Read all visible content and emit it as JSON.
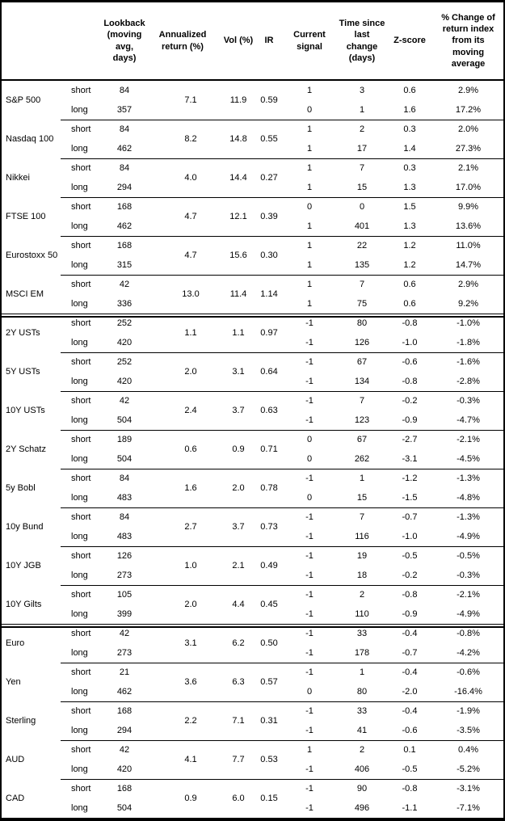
{
  "colors": {
    "border": "#000000",
    "background": "#ffffff",
    "text": "#000000"
  },
  "table": {
    "headers": {
      "lookback": "Lookback\n(moving\navg, days)",
      "annualized": "Annualized\nreturn (%)",
      "vol": "Vol (%)",
      "ir": "IR",
      "signal": "Current\nsignal",
      "time_since": "Time since\nlast change\n(days)",
      "zscore": "Z-score",
      "pct_change": "% Change of\nreturn index\nfrom its\nmoving\naverage"
    },
    "groups": [
      {
        "asset": "S&P 500",
        "section": "equities",
        "annualized": "7.1",
        "vol": "11.9",
        "ir": "0.59",
        "rows": [
          {
            "period": "short",
            "lookback": "84",
            "signal": "1",
            "time": "3",
            "zscore": "0.6",
            "pct": "2.9%"
          },
          {
            "period": "long",
            "lookback": "357",
            "signal": "0",
            "time": "1",
            "zscore": "1.6",
            "pct": "17.2%"
          }
        ]
      },
      {
        "asset": "Nasdaq 100",
        "section": "equities",
        "annualized": "8.2",
        "vol": "14.8",
        "ir": "0.55",
        "rows": [
          {
            "period": "short",
            "lookback": "84",
            "signal": "1",
            "time": "2",
            "zscore": "0.3",
            "pct": "2.0%"
          },
          {
            "period": "long",
            "lookback": "462",
            "signal": "1",
            "time": "17",
            "zscore": "1.4",
            "pct": "27.3%"
          }
        ]
      },
      {
        "asset": "Nikkei",
        "section": "equities",
        "annualized": "4.0",
        "vol": "14.4",
        "ir": "0.27",
        "rows": [
          {
            "period": "short",
            "lookback": "84",
            "signal": "1",
            "time": "7",
            "zscore": "0.3",
            "pct": "2.1%"
          },
          {
            "period": "long",
            "lookback": "294",
            "signal": "1",
            "time": "15",
            "zscore": "1.3",
            "pct": "17.0%"
          }
        ]
      },
      {
        "asset": "FTSE 100",
        "section": "equities",
        "annualized": "4.7",
        "vol": "12.1",
        "ir": "0.39",
        "rows": [
          {
            "period": "short",
            "lookback": "168",
            "signal": "0",
            "time": "0",
            "zscore": "1.5",
            "pct": "9.9%"
          },
          {
            "period": "long",
            "lookback": "462",
            "signal": "1",
            "time": "401",
            "zscore": "1.3",
            "pct": "13.6%"
          }
        ]
      },
      {
        "asset": "Eurostoxx 50",
        "section": "equities",
        "annualized": "4.7",
        "vol": "15.6",
        "ir": "0.30",
        "rows": [
          {
            "period": "short",
            "lookback": "168",
            "signal": "1",
            "time": "22",
            "zscore": "1.2",
            "pct": "11.0%"
          },
          {
            "period": "long",
            "lookback": "315",
            "signal": "1",
            "time": "135",
            "zscore": "1.2",
            "pct": "14.7%"
          }
        ]
      },
      {
        "asset": "MSCI EM",
        "section": "equities",
        "annualized": "13.0",
        "vol": "11.4",
        "ir": "1.14",
        "rows": [
          {
            "period": "short",
            "lookback": "42",
            "signal": "1",
            "time": "7",
            "zscore": "0.6",
            "pct": "2.9%"
          },
          {
            "period": "long",
            "lookback": "336",
            "signal": "1",
            "time": "75",
            "zscore": "0.6",
            "pct": "9.2%"
          }
        ]
      },
      {
        "asset": "2Y USTs",
        "section": "bonds",
        "annualized": "1.1",
        "vol": "1.1",
        "ir": "0.97",
        "rows": [
          {
            "period": "short",
            "lookback": "252",
            "signal": "-1",
            "time": "80",
            "zscore": "-0.8",
            "pct": "-1.0%"
          },
          {
            "period": "long",
            "lookback": "420",
            "signal": "-1",
            "time": "126",
            "zscore": "-1.0",
            "pct": "-1.8%"
          }
        ]
      },
      {
        "asset": "5Y USTs",
        "section": "bonds",
        "annualized": "2.0",
        "vol": "3.1",
        "ir": "0.64",
        "rows": [
          {
            "period": "short",
            "lookback": "252",
            "signal": "-1",
            "time": "67",
            "zscore": "-0.6",
            "pct": "-1.6%"
          },
          {
            "period": "long",
            "lookback": "420",
            "signal": "-1",
            "time": "134",
            "zscore": "-0.8",
            "pct": "-2.8%"
          }
        ]
      },
      {
        "asset": "10Y USTs",
        "section": "bonds",
        "annualized": "2.4",
        "vol": "3.7",
        "ir": "0.63",
        "rows": [
          {
            "period": "short",
            "lookback": "42",
            "signal": "-1",
            "time": "7",
            "zscore": "-0.2",
            "pct": "-0.3%"
          },
          {
            "period": "long",
            "lookback": "504",
            "signal": "-1",
            "time": "123",
            "zscore": "-0.9",
            "pct": "-4.7%"
          }
        ]
      },
      {
        "asset": "2Y Schatz",
        "section": "bonds",
        "annualized": "0.6",
        "vol": "0.9",
        "ir": "0.71",
        "rows": [
          {
            "period": "short",
            "lookback": "189",
            "signal": "0",
            "time": "67",
            "zscore": "-2.7",
            "pct": "-2.1%"
          },
          {
            "period": "long",
            "lookback": "504",
            "signal": "0",
            "time": "262",
            "zscore": "-3.1",
            "pct": "-4.5%"
          }
        ]
      },
      {
        "asset": "5y Bobl",
        "section": "bonds",
        "annualized": "1.6",
        "vol": "2.0",
        "ir": "0.78",
        "rows": [
          {
            "period": "short",
            "lookback": "84",
            "signal": "-1",
            "time": "1",
            "zscore": "-1.2",
            "pct": "-1.3%"
          },
          {
            "period": "long",
            "lookback": "483",
            "signal": "0",
            "time": "15",
            "zscore": "-1.5",
            "pct": "-4.8%"
          }
        ]
      },
      {
        "asset": "10y Bund",
        "section": "bonds",
        "annualized": "2.7",
        "vol": "3.7",
        "ir": "0.73",
        "rows": [
          {
            "period": "short",
            "lookback": "84",
            "signal": "-1",
            "time": "7",
            "zscore": "-0.7",
            "pct": "-1.3%"
          },
          {
            "period": "long",
            "lookback": "483",
            "signal": "-1",
            "time": "116",
            "zscore": "-1.0",
            "pct": "-4.9%"
          }
        ]
      },
      {
        "asset": "10Y JGB",
        "section": "bonds",
        "annualized": "1.0",
        "vol": "2.1",
        "ir": "0.49",
        "rows": [
          {
            "period": "short",
            "lookback": "126",
            "signal": "-1",
            "time": "19",
            "zscore": "-0.5",
            "pct": "-0.5%"
          },
          {
            "period": "long",
            "lookback": "273",
            "signal": "-1",
            "time": "18",
            "zscore": "-0.2",
            "pct": "-0.3%"
          }
        ]
      },
      {
        "asset": "10Y Gilts",
        "section": "bonds",
        "annualized": "2.0",
        "vol": "4.4",
        "ir": "0.45",
        "rows": [
          {
            "period": "short",
            "lookback": "105",
            "signal": "-1",
            "time": "2",
            "zscore": "-0.8",
            "pct": "-2.1%"
          },
          {
            "period": "long",
            "lookback": "399",
            "signal": "-1",
            "time": "110",
            "zscore": "-0.9",
            "pct": "-4.9%"
          }
        ]
      },
      {
        "asset": "Euro",
        "section": "fx",
        "annualized": "3.1",
        "vol": "6.2",
        "ir": "0.50",
        "rows": [
          {
            "period": "short",
            "lookback": "42",
            "signal": "-1",
            "time": "33",
            "zscore": "-0.4",
            "pct": "-0.8%"
          },
          {
            "period": "long",
            "lookback": "273",
            "signal": "-1",
            "time": "178",
            "zscore": "-0.7",
            "pct": "-4.2%"
          }
        ]
      },
      {
        "asset": "Yen",
        "section": "fx",
        "annualized": "3.6",
        "vol": "6.3",
        "ir": "0.57",
        "rows": [
          {
            "period": "short",
            "lookback": "21",
            "signal": "-1",
            "time": "1",
            "zscore": "-0.4",
            "pct": "-0.6%"
          },
          {
            "period": "long",
            "lookback": "462",
            "signal": "0",
            "time": "80",
            "zscore": "-2.0",
            "pct": "-16.4%"
          }
        ]
      },
      {
        "asset": "Sterling",
        "section": "fx",
        "annualized": "2.2",
        "vol": "7.1",
        "ir": "0.31",
        "rows": [
          {
            "period": "short",
            "lookback": "168",
            "signal": "-1",
            "time": "33",
            "zscore": "-0.4",
            "pct": "-1.9%"
          },
          {
            "period": "long",
            "lookback": "294",
            "signal": "-1",
            "time": "41",
            "zscore": "-0.6",
            "pct": "-3.5%"
          }
        ]
      },
      {
        "asset": "AUD",
        "section": "fx",
        "annualized": "4.1",
        "vol": "7.7",
        "ir": "0.53",
        "rows": [
          {
            "period": "short",
            "lookback": "42",
            "signal": "1",
            "time": "2",
            "zscore": "0.1",
            "pct": "0.4%"
          },
          {
            "period": "long",
            "lookback": "420",
            "signal": "-1",
            "time": "406",
            "zscore": "-0.5",
            "pct": "-5.2%"
          }
        ]
      },
      {
        "asset": "CAD",
        "section": "fx",
        "annualized": "0.9",
        "vol": "6.0",
        "ir": "0.15",
        "rows": [
          {
            "period": "short",
            "lookback": "168",
            "signal": "-1",
            "time": "90",
            "zscore": "-0.8",
            "pct": "-3.1%"
          },
          {
            "period": "long",
            "lookback": "504",
            "signal": "-1",
            "time": "496",
            "zscore": "-1.1",
            "pct": "-7.1%"
          }
        ]
      }
    ]
  }
}
